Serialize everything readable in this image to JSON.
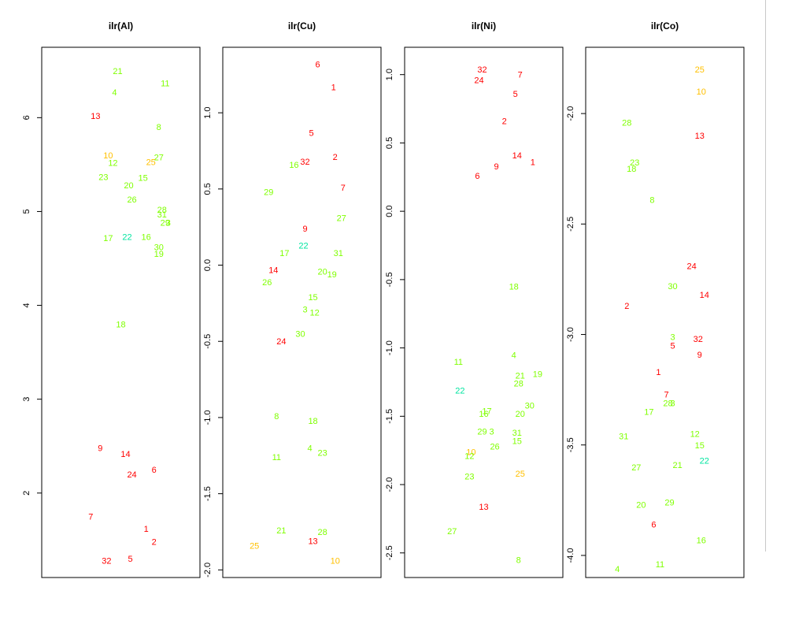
{
  "chart_data": [
    {
      "type": "scatter",
      "title": "ilr(Al)",
      "ylim": [
        1.1,
        6.75
      ],
      "yticks": [
        2,
        3,
        4,
        5,
        6
      ],
      "ytick_labels": [
        "2",
        "3",
        "4",
        "5",
        "6"
      ],
      "points": [
        {
          "label": "21",
          "x": 0.48,
          "y": 6.5,
          "color": "#7FFF00"
        },
        {
          "label": "11",
          "x": 0.78,
          "y": 6.37,
          "color": "#7FFF00"
        },
        {
          "label": "4",
          "x": 0.46,
          "y": 6.27,
          "color": "#7FFF00"
        },
        {
          "label": "13",
          "x": 0.34,
          "y": 6.02,
          "color": "#FF0000"
        },
        {
          "label": "8",
          "x": 0.74,
          "y": 5.9,
          "color": "#7FFF00"
        },
        {
          "label": "10",
          "x": 0.42,
          "y": 5.6,
          "color": "#FFC000"
        },
        {
          "label": "27",
          "x": 0.74,
          "y": 5.58,
          "color": "#7FFF00"
        },
        {
          "label": "12",
          "x": 0.45,
          "y": 5.52,
          "color": "#7FFF00"
        },
        {
          "label": "25",
          "x": 0.69,
          "y": 5.53,
          "color": "#FFC000"
        },
        {
          "label": "23",
          "x": 0.39,
          "y": 5.37,
          "color": "#7FFF00"
        },
        {
          "label": "15",
          "x": 0.64,
          "y": 5.36,
          "color": "#7FFF00"
        },
        {
          "label": "20",
          "x": 0.55,
          "y": 5.28,
          "color": "#7FFF00"
        },
        {
          "label": "26",
          "x": 0.57,
          "y": 5.13,
          "color": "#7FFF00"
        },
        {
          "label": "28",
          "x": 0.76,
          "y": 5.02,
          "color": "#7FFF00"
        },
        {
          "label": "31",
          "x": 0.76,
          "y": 4.97,
          "color": "#7FFF00"
        },
        {
          "label": "29",
          "x": 0.78,
          "y": 4.88,
          "color": "#7FFF00"
        },
        {
          "label": "3",
          "x": 0.8,
          "y": 4.88,
          "color": "#7FFF00"
        },
        {
          "label": "17",
          "x": 0.42,
          "y": 4.72,
          "color": "#7FFF00"
        },
        {
          "label": "22",
          "x": 0.54,
          "y": 4.73,
          "color": "#00E5A0"
        },
        {
          "label": "16",
          "x": 0.66,
          "y": 4.73,
          "color": "#7FFF00"
        },
        {
          "label": "30",
          "x": 0.74,
          "y": 4.62,
          "color": "#7FFF00"
        },
        {
          "label": "19",
          "x": 0.74,
          "y": 4.55,
          "color": "#7FFF00"
        },
        {
          "label": "18",
          "x": 0.5,
          "y": 3.8,
          "color": "#7FFF00"
        },
        {
          "label": "9",
          "x": 0.37,
          "y": 2.48,
          "color": "#FF0000"
        },
        {
          "label": "14",
          "x": 0.53,
          "y": 2.42,
          "color": "#FF0000"
        },
        {
          "label": "6",
          "x": 0.71,
          "y": 2.25,
          "color": "#FF0000"
        },
        {
          "label": "24",
          "x": 0.57,
          "y": 2.2,
          "color": "#FF0000"
        },
        {
          "label": "7",
          "x": 0.31,
          "y": 1.75,
          "color": "#FF0000"
        },
        {
          "label": "1",
          "x": 0.66,
          "y": 1.62,
          "color": "#FF0000"
        },
        {
          "label": "2",
          "x": 0.71,
          "y": 1.48,
          "color": "#FF0000"
        },
        {
          "label": "32",
          "x": 0.41,
          "y": 1.28,
          "color": "#FF0000"
        },
        {
          "label": "5",
          "x": 0.56,
          "y": 1.3,
          "color": "#FF0000"
        }
      ]
    },
    {
      "type": "scatter",
      "title": "ilr(Cu)",
      "ylim": [
        -2.05,
        1.43
      ],
      "yticks": [
        1.0,
        0.5,
        0.0,
        -0.5,
        -1.0,
        -1.5,
        -2.0
      ],
      "ytick_labels": [
        "1.0",
        "0.5",
        "0.0",
        "-0.5",
        "-1.0",
        "-1.5",
        "-2.0"
      ],
      "points": [
        {
          "label": "6",
          "x": 0.6,
          "y": 1.32,
          "color": "#FF0000"
        },
        {
          "label": "1",
          "x": 0.7,
          "y": 1.17,
          "color": "#FF0000"
        },
        {
          "label": "5",
          "x": 0.56,
          "y": 0.87,
          "color": "#FF0000"
        },
        {
          "label": "2",
          "x": 0.71,
          "y": 0.71,
          "color": "#FF0000"
        },
        {
          "label": "32",
          "x": 0.52,
          "y": 0.68,
          "color": "#FF0000"
        },
        {
          "label": "16",
          "x": 0.45,
          "y": 0.66,
          "color": "#7FFF00"
        },
        {
          "label": "7",
          "x": 0.76,
          "y": 0.51,
          "color": "#FF0000"
        },
        {
          "label": "29",
          "x": 0.29,
          "y": 0.48,
          "color": "#7FFF00"
        },
        {
          "label": "27",
          "x": 0.75,
          "y": 0.31,
          "color": "#7FFF00"
        },
        {
          "label": "9",
          "x": 0.52,
          "y": 0.24,
          "color": "#FF0000"
        },
        {
          "label": "22",
          "x": 0.51,
          "y": 0.13,
          "color": "#00E5A0"
        },
        {
          "label": "17",
          "x": 0.39,
          "y": 0.08,
          "color": "#7FFF00"
        },
        {
          "label": "31",
          "x": 0.73,
          "y": 0.08,
          "color": "#7FFF00"
        },
        {
          "label": "14",
          "x": 0.32,
          "y": -0.03,
          "color": "#FF0000"
        },
        {
          "label": "20",
          "x": 0.63,
          "y": -0.04,
          "color": "#7FFF00"
        },
        {
          "label": "19",
          "x": 0.69,
          "y": -0.06,
          "color": "#7FFF00"
        },
        {
          "label": "26",
          "x": 0.28,
          "y": -0.11,
          "color": "#7FFF00"
        },
        {
          "label": "15",
          "x": 0.57,
          "y": -0.21,
          "color": "#7FFF00"
        },
        {
          "label": "3",
          "x": 0.52,
          "y": -0.29,
          "color": "#7FFF00"
        },
        {
          "label": "12",
          "x": 0.58,
          "y": -0.31,
          "color": "#7FFF00"
        },
        {
          "label": "30",
          "x": 0.49,
          "y": -0.45,
          "color": "#7FFF00"
        },
        {
          "label": "24",
          "x": 0.37,
          "y": -0.5,
          "color": "#FF0000"
        },
        {
          "label": "8",
          "x": 0.34,
          "y": -0.99,
          "color": "#7FFF00"
        },
        {
          "label": "18",
          "x": 0.57,
          "y": -1.02,
          "color": "#7FFF00"
        },
        {
          "label": "4",
          "x": 0.55,
          "y": -1.2,
          "color": "#7FFF00"
        },
        {
          "label": "23",
          "x": 0.63,
          "y": -1.23,
          "color": "#7FFF00"
        },
        {
          "label": "11",
          "x": 0.34,
          "y": -1.26,
          "color": "#7FFF00"
        },
        {
          "label": "21",
          "x": 0.37,
          "y": -1.74,
          "color": "#7FFF00"
        },
        {
          "label": "28",
          "x": 0.63,
          "y": -1.75,
          "color": "#7FFF00"
        },
        {
          "label": "13",
          "x": 0.57,
          "y": -1.81,
          "color": "#FF0000"
        },
        {
          "label": "25",
          "x": 0.2,
          "y": -1.84,
          "color": "#FFC000"
        },
        {
          "label": "10",
          "x": 0.71,
          "y": -1.94,
          "color": "#FFC000"
        }
      ]
    },
    {
      "type": "scatter",
      "title": "ilr(Ni)",
      "ylim": [
        -2.68,
        1.2
      ],
      "yticks": [
        1.0,
        0.5,
        0.0,
        -0.5,
        -1.0,
        -1.5,
        -2.0,
        -2.5
      ],
      "ytick_labels": [
        "1.0",
        "0.5",
        "0.0",
        "-0.5",
        "-1.0",
        "-1.5",
        "-2.0",
        "-2.5"
      ],
      "points": [
        {
          "label": "32",
          "x": 0.49,
          "y": 1.04,
          "color": "#FF0000"
        },
        {
          "label": "24",
          "x": 0.47,
          "y": 0.96,
          "color": "#FF0000"
        },
        {
          "label": "7",
          "x": 0.73,
          "y": 1.0,
          "color": "#FF0000"
        },
        {
          "label": "5",
          "x": 0.7,
          "y": 0.86,
          "color": "#FF0000"
        },
        {
          "label": "2",
          "x": 0.63,
          "y": 0.66,
          "color": "#FF0000"
        },
        {
          "label": "14",
          "x": 0.71,
          "y": 0.41,
          "color": "#FF0000"
        },
        {
          "label": "1",
          "x": 0.81,
          "y": 0.36,
          "color": "#FF0000"
        },
        {
          "label": "9",
          "x": 0.58,
          "y": 0.33,
          "color": "#FF0000"
        },
        {
          "label": "6",
          "x": 0.46,
          "y": 0.26,
          "color": "#FF0000"
        },
        {
          "label": "18",
          "x": 0.69,
          "y": -0.55,
          "color": "#7FFF00"
        },
        {
          "label": "4",
          "x": 0.69,
          "y": -1.05,
          "color": "#7FFF00"
        },
        {
          "label": "11",
          "x": 0.34,
          "y": -1.1,
          "color": "#7FFF00"
        },
        {
          "label": "21",
          "x": 0.73,
          "y": -1.2,
          "color": "#7FFF00"
        },
        {
          "label": "19",
          "x": 0.84,
          "y": -1.19,
          "color": "#7FFF00"
        },
        {
          "label": "28",
          "x": 0.72,
          "y": -1.26,
          "color": "#7FFF00"
        },
        {
          "label": "22",
          "x": 0.35,
          "y": -1.31,
          "color": "#00E5A0"
        },
        {
          "label": "30",
          "x": 0.79,
          "y": -1.42,
          "color": "#7FFF00"
        },
        {
          "label": "17",
          "x": 0.52,
          "y": -1.46,
          "color": "#7FFF00"
        },
        {
          "label": "16",
          "x": 0.5,
          "y": -1.48,
          "color": "#7FFF00"
        },
        {
          "label": "20",
          "x": 0.73,
          "y": -1.48,
          "color": "#7FFF00"
        },
        {
          "label": "29",
          "x": 0.49,
          "y": -1.61,
          "color": "#7FFF00"
        },
        {
          "label": "3",
          "x": 0.55,
          "y": -1.61,
          "color": "#7FFF00"
        },
        {
          "label": "31",
          "x": 0.71,
          "y": -1.62,
          "color": "#7FFF00"
        },
        {
          "label": "15",
          "x": 0.71,
          "y": -1.68,
          "color": "#7FFF00"
        },
        {
          "label": "26",
          "x": 0.57,
          "y": -1.72,
          "color": "#7FFF00"
        },
        {
          "label": "10",
          "x": 0.42,
          "y": -1.76,
          "color": "#FFC000"
        },
        {
          "label": "12",
          "x": 0.41,
          "y": -1.79,
          "color": "#7FFF00"
        },
        {
          "label": "25",
          "x": 0.73,
          "y": -1.92,
          "color": "#FFC000"
        },
        {
          "label": "23",
          "x": 0.41,
          "y": -1.94,
          "color": "#7FFF00"
        },
        {
          "label": "13",
          "x": 0.5,
          "y": -2.16,
          "color": "#FF0000"
        },
        {
          "label": "27",
          "x": 0.3,
          "y": -2.34,
          "color": "#7FFF00"
        },
        {
          "label": "8",
          "x": 0.72,
          "y": -2.55,
          "color": "#7FFF00"
        }
      ]
    },
    {
      "type": "scatter",
      "title": "ilr(Co)",
      "ylim": [
        -4.1,
        -1.7
      ],
      "yticks": [
        -2.0,
        -2.5,
        -3.0,
        -3.5,
        -4.0
      ],
      "ytick_labels": [
        "-2.0",
        "-2.5",
        "-3.0",
        "-3.5",
        "-4.0"
      ],
      "points": [
        {
          "label": "25",
          "x": 0.72,
          "y": -1.8,
          "color": "#FFC000"
        },
        {
          "label": "10",
          "x": 0.73,
          "y": -1.9,
          "color": "#FFC000"
        },
        {
          "label": "28",
          "x": 0.26,
          "y": -2.04,
          "color": "#7FFF00"
        },
        {
          "label": "13",
          "x": 0.72,
          "y": -2.1,
          "color": "#FF0000"
        },
        {
          "label": "23",
          "x": 0.31,
          "y": -2.22,
          "color": "#7FFF00"
        },
        {
          "label": "18",
          "x": 0.29,
          "y": -2.25,
          "color": "#7FFF00"
        },
        {
          "label": "8",
          "x": 0.42,
          "y": -2.39,
          "color": "#7FFF00"
        },
        {
          "label": "24",
          "x": 0.67,
          "y": -2.69,
          "color": "#FF0000"
        },
        {
          "label": "30",
          "x": 0.55,
          "y": -2.78,
          "color": "#7FFF00"
        },
        {
          "label": "14",
          "x": 0.75,
          "y": -2.82,
          "color": "#FF0000"
        },
        {
          "label": "2",
          "x": 0.26,
          "y": -2.87,
          "color": "#FF0000"
        },
        {
          "label": "3",
          "x": 0.55,
          "y": -3.01,
          "color": "#7FFF00"
        },
        {
          "label": "32",
          "x": 0.71,
          "y": -3.02,
          "color": "#FF0000"
        },
        {
          "label": "5",
          "x": 0.55,
          "y": -3.05,
          "color": "#FF0000"
        },
        {
          "label": "9",
          "x": 0.72,
          "y": -3.09,
          "color": "#FF0000"
        },
        {
          "label": "1",
          "x": 0.46,
          "y": -3.17,
          "color": "#FF0000"
        },
        {
          "label": "7",
          "x": 0.51,
          "y": -3.27,
          "color": "#FF0000"
        },
        {
          "label": "28",
          "x": 0.52,
          "y": -3.31,
          "color": "#7FFF00"
        },
        {
          "label": "3",
          "x": 0.55,
          "y": -3.31,
          "color": "#7FFF00"
        },
        {
          "label": "17",
          "x": 0.4,
          "y": -3.35,
          "color": "#7FFF00"
        },
        {
          "label": "31",
          "x": 0.24,
          "y": -3.46,
          "color": "#7FFF00"
        },
        {
          "label": "12",
          "x": 0.69,
          "y": -3.45,
          "color": "#7FFF00"
        },
        {
          "label": "15",
          "x": 0.72,
          "y": -3.5,
          "color": "#7FFF00"
        },
        {
          "label": "22",
          "x": 0.75,
          "y": -3.57,
          "color": "#00E5A0"
        },
        {
          "label": "27",
          "x": 0.32,
          "y": -3.6,
          "color": "#7FFF00"
        },
        {
          "label": "21",
          "x": 0.58,
          "y": -3.59,
          "color": "#7FFF00"
        },
        {
          "label": "29",
          "x": 0.53,
          "y": -3.76,
          "color": "#7FFF00"
        },
        {
          "label": "20",
          "x": 0.35,
          "y": -3.77,
          "color": "#7FFF00"
        },
        {
          "label": "6",
          "x": 0.43,
          "y": -3.86,
          "color": "#FF0000"
        },
        {
          "label": "16",
          "x": 0.73,
          "y": -3.93,
          "color": "#7FFF00"
        },
        {
          "label": "11",
          "x": 0.47,
          "y": -4.04,
          "color": "#7FFF00"
        },
        {
          "label": "4",
          "x": 0.2,
          "y": -4.06,
          "color": "#7FFF00"
        }
      ]
    }
  ]
}
